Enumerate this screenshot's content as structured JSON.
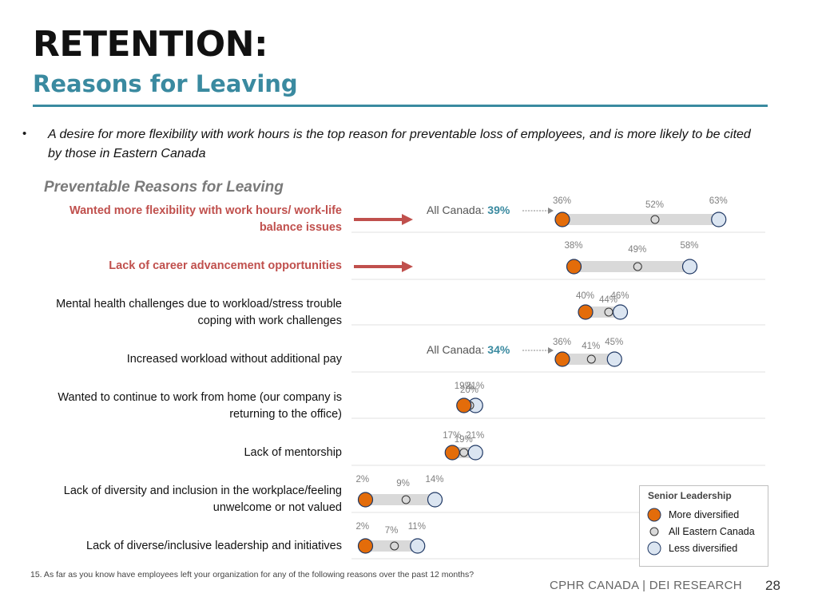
{
  "header": {
    "title": "RETENTION:",
    "subtitle": "Reasons for Leaving"
  },
  "bullet": "A desire for more flexibility with work hours is the top reason for preventable loss of employees, and is more likely to be cited by those in Eastern Canada",
  "chart_data": {
    "type": "scatter",
    "title": "Preventable Reasons for Leaving",
    "value_unit": "%",
    "categories": [
      "Wanted more flexibility with work hours/ work-life balance issues",
      "Lack of career advancement opportunities",
      "Mental health challenges due to workload/stress trouble coping with work challenges",
      "Increased workload without additional pay",
      "Wanted to continue to work from home (our company is returning to the office)",
      "Lack of mentorship",
      "Lack of diversity and inclusion in the workplace/feeling unwelcome or not valued",
      "Lack of diverse/inclusive leadership and initiatives"
    ],
    "highlighted_categories": [
      0,
      1
    ],
    "series": [
      {
        "name": "More diversified",
        "color": "#e36c0a",
        "values": [
          36,
          38,
          40,
          36,
          19,
          17,
          2,
          2
        ]
      },
      {
        "name": "All Eastern Canada",
        "color": "#d9d9d9",
        "values": [
          52,
          49,
          44,
          41,
          20,
          19,
          9,
          7
        ]
      },
      {
        "name": "Less diversified",
        "color": "#dbe5f1",
        "values": [
          63,
          58,
          46,
          45,
          21,
          21,
          14,
          11
        ]
      }
    ],
    "reference_labels": [
      {
        "category": 0,
        "prefix": "All Canada: ",
        "value": "39%"
      },
      {
        "category": 3,
        "prefix": "All Canada: ",
        "value": "34%"
      }
    ],
    "legend": {
      "title": "Senior Leadership",
      "placement": "bottom-right"
    },
    "colors": {
      "highlight": "#c0504d",
      "accent": "#3a8aa0",
      "range_bar": "#d9d9d9",
      "more_fill": "#e36c0a",
      "less_fill": "#dbe5f1",
      "marker_stroke": "#1f3864"
    }
  },
  "footnote": "15. As far as you know have employees left your organization for any of the following reasons over the past 12 months?",
  "footer": {
    "brand": "CPHR CANADA | DEI RESEARCH",
    "page": "28"
  }
}
